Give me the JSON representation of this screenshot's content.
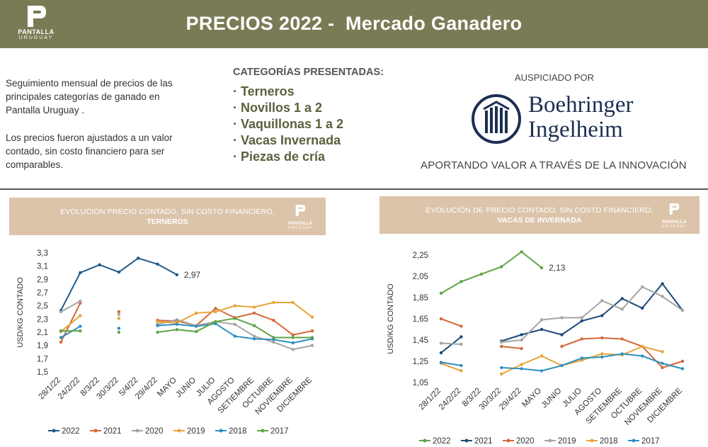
{
  "header": {
    "title": "PRECIOS 2022 -  Mercado Ganadero",
    "logo_line1": "PANTALLA",
    "logo_line2": "URUGUAY",
    "bg_color": "#7a7b55"
  },
  "intro": {
    "paragraph1": "Seguimiento mensual de precios de las principales categorías de ganado en Pantalla Uruguay .",
    "paragraph2": "Los precios fueron ajustados a un valor contado, sin costo financiero para ser comparables."
  },
  "categories": {
    "heading": "CATEGORÍAS PRESENTADAS:",
    "items": [
      "· Terneros",
      "· Novillos 1 a 2",
      "· Vaquillonas 1 a 2",
      "· Vacas Invernada",
      "· Piezas de cría"
    ]
  },
  "sponsor": {
    "label": "AUSPICIADO POR",
    "name_line1": "Boehringer",
    "name_line2": "Ingelheim",
    "tagline": "APORTANDO VALOR A TRAVÉS DE LA INNOVACIÓN",
    "logo_icon": "boehringer-logo-icon"
  },
  "colors": {
    "2022": "#1f5a8a",
    "2021": "#d4683a",
    "2020": "#a5a5a5",
    "2019": "#e8a43a",
    "2018": "#2f8fc0",
    "2017": "#5fa548",
    "2022_vacas": "#5fa548",
    "2021_vacas": "#1c4a7a"
  },
  "chart_data": [
    {
      "type": "line",
      "panel_title_line1": "EVOLUCIÓN PRECIO CONTADO, SIN COSTO FINANCIERO,",
      "panel_title_line2": "TERNEROS",
      "ylabel": "USD/KG CONTADO",
      "ylim": [
        1.5,
        3.3
      ],
      "yticks": [
        "1,5",
        "1,7",
        "1,9",
        "2,1",
        "2,3",
        "2,5",
        "2,7",
        "2,9",
        "3,1",
        "3,3"
      ],
      "categories": [
        "28/1/22",
        "24/2/22",
        "8/3/22",
        "30/3/22",
        "5/4/22",
        "29/4/22",
        "MAYO",
        "JUNIO",
        "JULIO",
        "AGOSTO",
        "SETIEMBRE",
        "OCTUBRE",
        "NOVIEMBRE",
        "DICIEMBRE"
      ],
      "annotation": "2,97",
      "series": [
        {
          "name": "2022",
          "color": "#1f5a8a",
          "values": [
            2.43,
            3.0,
            3.12,
            3.01,
            3.22,
            3.13,
            2.97,
            null,
            null,
            null,
            null,
            null,
            null,
            null
          ]
        },
        {
          "name": "2021",
          "color": "#d4683a",
          "values": [
            1.95,
            2.54,
            null,
            2.41,
            null,
            2.28,
            2.27,
            2.2,
            2.46,
            2.32,
            2.39,
            2.28,
            2.06,
            2.12
          ]
        },
        {
          "name": "2020",
          "color": "#a5a5a5",
          "values": [
            2.41,
            2.57,
            null,
            2.37,
            null,
            2.22,
            2.29,
            2.2,
            2.26,
            2.22,
            2.04,
            1.95,
            1.84,
            1.9
          ]
        },
        {
          "name": "2019",
          "color": "#e8a43a",
          "values": [
            2.11,
            2.35,
            null,
            2.31,
            null,
            2.26,
            2.24,
            2.39,
            2.41,
            2.5,
            2.48,
            2.55,
            2.55,
            2.33
          ]
        },
        {
          "name": "2018",
          "color": "#2f8fc0",
          "values": [
            2.02,
            2.19,
            null,
            2.16,
            null,
            2.2,
            2.22,
            2.19,
            2.23,
            2.04,
            2.0,
            1.99,
            1.94,
            2.0
          ]
        },
        {
          "name": "2017",
          "color": "#5fa548",
          "values": [
            2.12,
            2.12,
            null,
            2.1,
            null,
            2.1,
            2.14,
            2.11,
            2.26,
            2.31,
            2.2,
            2.02,
            2.02,
            2.02
          ]
        }
      ]
    },
    {
      "type": "line",
      "panel_title_line1": "EVOLUCIÓN DE PRECIO CONTADO, SIN COSTO FINANCIERO,",
      "panel_title_line2": "VACAS DE INVERNADA",
      "ylabel": "USD/KG CONTADO",
      "ylim": [
        1.05,
        2.25
      ],
      "yticks": [
        "1,05",
        "1,25",
        "1,45",
        "1,65",
        "1,85",
        "2,05",
        "2,25"
      ],
      "categories": [
        "28/1/22",
        "24/2/22",
        "8/3/22",
        "30/3/22",
        "29/4/22",
        "MAYO",
        "JUNIO",
        "JULIO",
        "AGOSTO",
        "SETIEMBRE",
        "OCTUBRE",
        "NOVIEMBRE",
        "DICIEMBRE"
      ],
      "annotation": "2,13",
      "series": [
        {
          "name": "2022",
          "color": "#5fa548",
          "values": [
            1.89,
            2.0,
            2.07,
            2.14,
            2.28,
            2.13,
            null,
            null,
            null,
            null,
            null,
            null,
            null
          ]
        },
        {
          "name": "2021",
          "color": "#1c4a7a",
          "values": [
            1.33,
            1.48,
            null,
            1.44,
            1.5,
            1.55,
            1.5,
            1.63,
            1.68,
            1.84,
            1.75,
            1.98,
            1.73
          ]
        },
        {
          "name": "2020",
          "color": "#d4683a",
          "values": [
            1.65,
            1.58,
            null,
            1.39,
            1.37,
            null,
            1.39,
            1.46,
            1.47,
            1.46,
            1.39,
            1.19,
            1.25
          ]
        },
        {
          "name": "2019",
          "color": "#a5a5a5",
          "values": [
            1.42,
            1.41,
            null,
            1.43,
            1.45,
            1.64,
            1.66,
            1.66,
            1.82,
            1.74,
            1.95,
            1.86,
            1.73
          ]
        },
        {
          "name": "2018",
          "color": "#e8a43a",
          "values": [
            1.23,
            1.16,
            null,
            1.13,
            1.22,
            1.3,
            1.21,
            1.26,
            1.32,
            1.31,
            1.39,
            1.34,
            null
          ]
        },
        {
          "name": "2017",
          "color": "#2f8fc0",
          "values": [
            1.24,
            1.21,
            null,
            1.19,
            1.18,
            1.16,
            1.21,
            1.28,
            1.29,
            1.32,
            1.3,
            1.23,
            1.18
          ]
        }
      ]
    }
  ]
}
